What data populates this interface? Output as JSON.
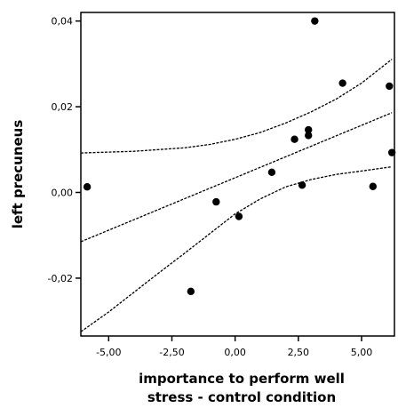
{
  "chart_data": {
    "type": "scatter",
    "title": "",
    "xlabel": [
      "importance to perform well",
      "stress - control condition"
    ],
    "ylabel": "left precuneus",
    "xlim": [
      -6.1,
      6.3
    ],
    "ylim": [
      -0.0335,
      0.042
    ],
    "x_ticks": [
      -5,
      -2.5,
      0,
      2.5,
      5
    ],
    "x_tick_labels": [
      "-5,00",
      "-2,50",
      "0,00",
      "2,50",
      "5,00"
    ],
    "y_ticks": [
      -0.02,
      0,
      0.02,
      0.04
    ],
    "y_tick_labels": [
      "-0,02",
      "0,00",
      "0,02",
      "0,04"
    ],
    "grid": false,
    "points": [
      {
        "x": -5.85,
        "y": 0.0013
      },
      {
        "x": -1.75,
        "y": -0.0231
      },
      {
        "x": -0.75,
        "y": -0.0022
      },
      {
        "x": 0.15,
        "y": -0.0056
      },
      {
        "x": 1.45,
        "y": 0.0047
      },
      {
        "x": 2.35,
        "y": 0.0124
      },
      {
        "x": 2.65,
        "y": 0.0017
      },
      {
        "x": 2.9,
        "y": 0.0146
      },
      {
        "x": 2.9,
        "y": 0.0133
      },
      {
        "x": 3.15,
        "y": 0.04
      },
      {
        "x": 4.25,
        "y": 0.0255
      },
      {
        "x": 5.45,
        "y": 0.0014
      },
      {
        "x": 6.1,
        "y": 0.0248
      },
      {
        "x": 6.2,
        "y": 0.0093
      }
    ],
    "fit_line": {
      "x": [
        -6.1,
        6.2
      ],
      "y": [
        -0.0115,
        0.0186
      ]
    },
    "ci_upper": {
      "x": [
        -6.1,
        -4,
        -2,
        -1,
        0,
        1,
        2,
        3,
        4,
        5,
        6.2
      ],
      "y": [
        0.0092,
        0.0096,
        0.0104,
        0.0112,
        0.0124,
        0.014,
        0.0162,
        0.0188,
        0.0218,
        0.0255,
        0.0311
      ]
    },
    "ci_lower": {
      "x": [
        -6.1,
        -5,
        -4,
        -3,
        -2,
        -1,
        0,
        1,
        2,
        3,
        4,
        5,
        6.2
      ],
      "y": [
        -0.0325,
        -0.0279,
        -0.0233,
        -0.0187,
        -0.0142,
        -0.0096,
        -0.005,
        -0.0015,
        0.0013,
        0.003,
        0.0042,
        0.005,
        0.006
      ]
    }
  }
}
